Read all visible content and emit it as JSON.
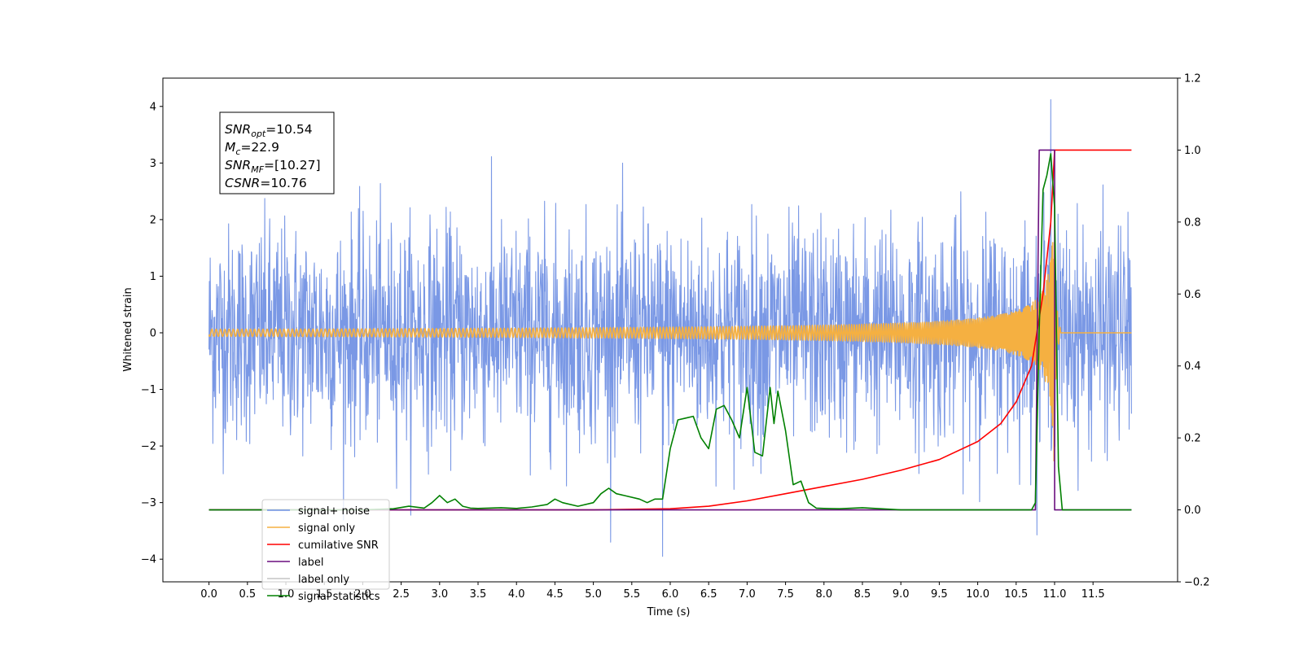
{
  "chart_data": {
    "type": "line",
    "xlabel": "Time (s)",
    "ylabel": "Whitened strain",
    "xlim": [
      -0.6,
      12.6
    ],
    "ylim": [
      -4.4,
      4.5
    ],
    "ylim_right": [
      -0.2,
      1.2
    ],
    "x_ticks": [
      "0.0",
      "0.5",
      "1.0",
      "1.5",
      "2.0",
      "2.5",
      "3.0",
      "3.5",
      "4.0",
      "4.5",
      "5.0",
      "5.5",
      "6.0",
      "6.5",
      "7.0",
      "7.5",
      "8.0",
      "8.5",
      "9.0",
      "9.5",
      "10.0",
      "10.5",
      "11.0",
      "11.5"
    ],
    "y_ticks_left": [
      "4",
      "3",
      "2",
      "1",
      "0",
      "−1",
      "−2",
      "−3",
      "−4"
    ],
    "y_ticks_right": [
      "1.2",
      "1.0",
      "0.8",
      "0.6",
      "0.4",
      "0.2",
      "0.0",
      "−0.2"
    ],
    "legend_placement": "lower-left",
    "annotation": {
      "lines": [
        {
          "base": "SNR",
          "sub": "opt",
          "rest": "=10.54"
        },
        {
          "base": "M",
          "sub": "c",
          "rest": "=22.9"
        },
        {
          "base": "SNR",
          "sub": "MF",
          "rest": "=[10.27]"
        },
        {
          "base": "CSNR",
          "sub": "",
          "rest": "=10.76"
        }
      ]
    },
    "series": [
      {
        "name": "signal+ noise",
        "axis": "left",
        "color": "#6f8fe3",
        "style": "noise",
        "x_range": [
          0.0,
          12.0
        ],
        "envelope_std": 1.0,
        "peak": [
          10.95,
          4.12
        ],
        "trough": [
          5.9,
          -3.95
        ]
      },
      {
        "name": "signal only",
        "axis": "left",
        "color": "#f5b041",
        "style": "chirp",
        "x_range": [
          0.0,
          12.0
        ],
        "merger_time": 11.0,
        "peak_amplitude": 1.6
      },
      {
        "name": "cumilative SNR",
        "axis": "right",
        "color": "#ff0000",
        "x": [
          0.0,
          5.0,
          6.0,
          6.5,
          7.0,
          7.5,
          8.0,
          8.5,
          9.0,
          9.5,
          10.0,
          10.3,
          10.5,
          10.7,
          10.85,
          10.95,
          11.0,
          12.0
        ],
        "y": [
          0.0,
          0.0,
          0.003,
          0.01,
          0.025,
          0.045,
          0.065,
          0.085,
          0.11,
          0.14,
          0.19,
          0.24,
          0.3,
          0.4,
          0.6,
          0.8,
          1.0,
          1.0
        ]
      },
      {
        "name": "label",
        "axis": "right",
        "color": "#6a0f7f",
        "x": [
          0.0,
          10.75,
          10.8,
          11.0,
          11.0,
          11.1,
          12.0
        ],
        "y": [
          0.0,
          0.0,
          1.0,
          1.0,
          0.0,
          0.0,
          0.0
        ]
      },
      {
        "name": "label only",
        "axis": "right",
        "color": "#8a8a8a",
        "hidden": true
      },
      {
        "name": "signal statistics",
        "axis": "right",
        "color": "#008000",
        "x": [
          0.0,
          2.0,
          2.4,
          2.6,
          2.8,
          2.9,
          3.0,
          3.1,
          3.2,
          3.3,
          3.4,
          3.5,
          3.8,
          4.0,
          4.2,
          4.4,
          4.5,
          4.6,
          4.8,
          5.0,
          5.1,
          5.2,
          5.3,
          5.4,
          5.6,
          5.7,
          5.8,
          5.9,
          6.0,
          6.1,
          6.2,
          6.3,
          6.4,
          6.5,
          6.6,
          6.7,
          6.8,
          6.9,
          7.0,
          7.1,
          7.2,
          7.3,
          7.35,
          7.4,
          7.5,
          7.6,
          7.7,
          7.8,
          7.9,
          8.0,
          8.2,
          8.5,
          9.0,
          10.0,
          10.7,
          10.75,
          10.8,
          10.85,
          10.9,
          10.95,
          11.0,
          11.05,
          11.1,
          12.0
        ],
        "y": [
          0.0,
          0.0,
          0.003,
          0.01,
          0.005,
          0.02,
          0.04,
          0.02,
          0.03,
          0.01,
          0.005,
          0.004,
          0.006,
          0.004,
          0.008,
          0.015,
          0.03,
          0.02,
          0.01,
          0.02,
          0.045,
          0.06,
          0.045,
          0.04,
          0.03,
          0.02,
          0.03,
          0.03,
          0.17,
          0.25,
          0.255,
          0.26,
          0.2,
          0.17,
          0.28,
          0.29,
          0.25,
          0.2,
          0.34,
          0.16,
          0.15,
          0.34,
          0.24,
          0.33,
          0.22,
          0.07,
          0.08,
          0.02,
          0.005,
          0.004,
          0.003,
          0.006,
          0.0,
          0.0,
          0.0,
          0.02,
          0.5,
          0.89,
          0.93,
          0.99,
          0.84,
          0.12,
          0.0,
          0.0
        ]
      }
    ]
  }
}
